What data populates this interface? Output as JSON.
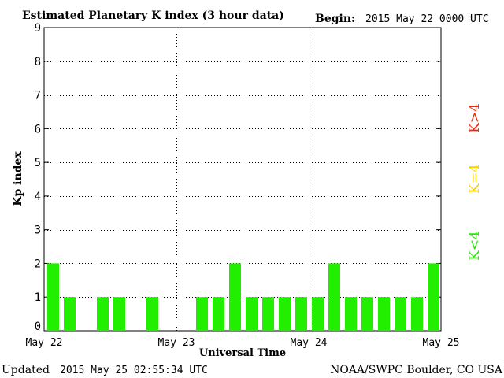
{
  "header": {
    "title": "Estimated Planetary K index (3 hour data)",
    "begin_label": "Begin:",
    "begin_value": "2015 May 22 0000 UTC"
  },
  "footer": {
    "updated_label": "Updated",
    "updated_value": "2015 May 25 02:55:34 UTC",
    "source": "NOAA/SWPC Boulder, CO USA"
  },
  "legend": {
    "items": [
      {
        "label": "K<4",
        "color": "#22ee00"
      },
      {
        "label": "K=4",
        "color": "#ffcc00"
      },
      {
        "label": "K>4",
        "color": "#ff2200"
      }
    ]
  },
  "chart_data": {
    "type": "bar",
    "title": "Estimated Planetary K index (3 hour data)",
    "xlabel": "Universal Time",
    "ylabel": "Kp index",
    "ylim": [
      0,
      9
    ],
    "yticks": [
      0,
      1,
      2,
      3,
      4,
      5,
      6,
      7,
      8,
      9
    ],
    "xtick_labels": [
      "May 22",
      "May 23",
      "May 24",
      "May 25"
    ],
    "bar_color": "#22ee00",
    "grid": true,
    "categories": [
      "May 22 00",
      "May 22 03",
      "May 22 06",
      "May 22 09",
      "May 22 12",
      "May 22 15",
      "May 22 18",
      "May 22 21",
      "May 23 00",
      "May 23 03",
      "May 23 06",
      "May 23 09",
      "May 23 12",
      "May 23 15",
      "May 23 18",
      "May 23 21",
      "May 24 00",
      "May 24 03",
      "May 24 06",
      "May 24 09",
      "May 24 12",
      "May 24 15",
      "May 24 18",
      "May 24 21"
    ],
    "values": [
      2,
      1,
      0,
      1,
      1,
      0,
      1,
      0,
      0,
      1,
      1,
      2,
      1,
      1,
      1,
      1,
      1,
      2,
      1,
      1,
      1,
      1,
      1,
      2
    ]
  }
}
